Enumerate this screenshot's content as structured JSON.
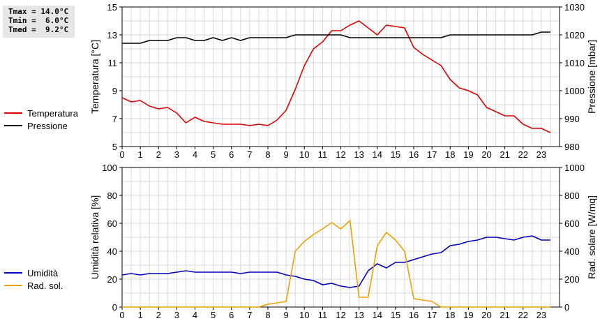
{
  "stats": {
    "tmax": "Tmax = 14.0°C",
    "tmin": "Tmin =  6.0°C",
    "tmed": "Tmed =  9.2°C"
  },
  "legend_top": [
    {
      "label": "Temperatura",
      "color": "#e00000"
    },
    {
      "label": "Pressione",
      "color": "#000000"
    }
  ],
  "legend_bottom": [
    {
      "label": "Umidità",
      "color": "#0000c0"
    },
    {
      "label": "Rad. sol.",
      "color": "#f0a000"
    }
  ],
  "chart_data": [
    {
      "type": "line",
      "xlabel": "",
      "ylabel": "Temperatura [°C]",
      "ylabel_right": "Pressione [mbar]",
      "xlim": [
        0,
        24
      ],
      "ylim": [
        5,
        15
      ],
      "ylim_right": [
        980,
        1030
      ],
      "xticks": [
        0,
        1,
        2,
        3,
        4,
        5,
        6,
        7,
        8,
        9,
        10,
        11,
        12,
        13,
        14,
        15,
        16,
        17,
        18,
        19,
        20,
        21,
        22,
        23
      ],
      "yticks": [
        5,
        7,
        9,
        11,
        13,
        15
      ],
      "yticks_right": [
        980,
        990,
        1000,
        1010,
        1020,
        1030
      ],
      "grid": true,
      "series": [
        {
          "name": "Temperatura",
          "color": "#e00000",
          "axis": "left",
          "x": [
            0,
            0.5,
            1,
            1.5,
            2,
            2.5,
            3,
            3.5,
            4,
            4.5,
            5,
            5.5,
            6,
            6.5,
            7,
            7.5,
            8,
            8.5,
            9,
            9.5,
            10,
            10.5,
            11,
            11.5,
            12,
            12.5,
            13,
            13.5,
            14,
            14.5,
            15,
            15.5,
            16,
            16.5,
            17,
            17.5,
            18,
            18.5,
            19,
            19.5,
            20,
            20.5,
            21,
            21.5,
            22,
            22.5,
            23,
            23.5
          ],
          "y": [
            8.5,
            8.2,
            8.3,
            7.9,
            7.7,
            7.8,
            7.4,
            6.7,
            7.1,
            6.8,
            6.7,
            6.6,
            6.6,
            6.6,
            6.5,
            6.6,
            6.5,
            6.9,
            7.6,
            9.1,
            10.8,
            12.0,
            12.5,
            13.3,
            13.3,
            13.7,
            14.0,
            13.5,
            13.0,
            13.7,
            13.6,
            13.5,
            12.1,
            11.6,
            11.2,
            10.8,
            9.8,
            9.2,
            9.0,
            8.7,
            7.8,
            7.5,
            7.2,
            7.2,
            6.6,
            6.3,
            6.3,
            6.0
          ]
        },
        {
          "name": "Pressione",
          "color": "#000000",
          "axis": "right",
          "x": [
            0,
            0.5,
            1,
            1.5,
            2,
            2.5,
            3,
            3.5,
            4,
            4.5,
            5,
            5.5,
            6,
            6.5,
            7,
            7.5,
            8,
            8.5,
            9,
            9.5,
            10,
            10.5,
            11,
            11.5,
            12,
            12.5,
            13,
            13.5,
            14,
            14.5,
            15,
            15.5,
            16,
            16.5,
            17,
            17.5,
            18,
            18.5,
            19,
            19.5,
            20,
            20.5,
            21,
            21.5,
            22,
            22.5,
            23,
            23.5
          ],
          "y": [
            1017,
            1017,
            1017,
            1018,
            1018,
            1018,
            1019,
            1019,
            1018,
            1018,
            1019,
            1018,
            1019,
            1018,
            1019,
            1019,
            1019,
            1019,
            1019,
            1020,
            1020,
            1020,
            1020,
            1020,
            1020,
            1019,
            1019,
            1019,
            1019,
            1019,
            1019,
            1019,
            1019,
            1019,
            1019,
            1019,
            1020,
            1020,
            1020,
            1020,
            1020,
            1020,
            1020,
            1020,
            1020,
            1020,
            1021,
            1021
          ]
        }
      ]
    },
    {
      "type": "line",
      "xlabel": "",
      "ylabel": "Umidità relativa [%]",
      "ylabel_right": "Rad. solare [W/mq]",
      "xlim": [
        0,
        24
      ],
      "ylim": [
        0,
        100
      ],
      "ylim_right": [
        0,
        1000
      ],
      "xticks": [
        0,
        1,
        2,
        3,
        4,
        5,
        6,
        7,
        8,
        9,
        10,
        11,
        12,
        13,
        14,
        15,
        16,
        17,
        18,
        19,
        20,
        21,
        22,
        23
      ],
      "yticks": [
        0,
        20,
        40,
        60,
        80,
        100
      ],
      "yticks_right": [
        0,
        200,
        400,
        600,
        800,
        1000
      ],
      "grid": true,
      "series": [
        {
          "name": "Umidità",
          "color": "#0000c0",
          "axis": "left",
          "x": [
            0,
            0.5,
            1,
            1.5,
            2,
            2.5,
            3,
            3.5,
            4,
            4.5,
            5,
            5.5,
            6,
            6.5,
            7,
            7.5,
            8,
            8.5,
            9,
            9.5,
            10,
            10.5,
            11,
            11.5,
            12,
            12.5,
            13,
            13.5,
            14,
            14.5,
            15,
            15.5,
            16,
            16.5,
            17,
            17.5,
            18,
            18.5,
            19,
            19.5,
            20,
            20.5,
            21,
            21.5,
            22,
            22.5,
            23,
            23.5
          ],
          "y": [
            23,
            24,
            23,
            24,
            24,
            24,
            25,
            26,
            25,
            25,
            25,
            25,
            25,
            24,
            25,
            25,
            25,
            25,
            23,
            22,
            20,
            19,
            16,
            17,
            15,
            14,
            15,
            26,
            31,
            28,
            32,
            32,
            34,
            36,
            38,
            39,
            44,
            45,
            47,
            48,
            50,
            50,
            49,
            48,
            50,
            51,
            48,
            48
          ]
        },
        {
          "name": "Rad. sol.",
          "color": "#f0a000",
          "axis": "right",
          "x": [
            0,
            0.5,
            1,
            1.5,
            2,
            2.5,
            3,
            3.5,
            4,
            4.5,
            5,
            5.5,
            6,
            6.5,
            7,
            7.5,
            8,
            8.5,
            9,
            9.5,
            10,
            10.5,
            11,
            11.5,
            12,
            12.5,
            13,
            13.5,
            14,
            14.5,
            15,
            15.5,
            16,
            16.5,
            17,
            17.5,
            18,
            18.5,
            19,
            19.5,
            20,
            20.5,
            21,
            21.5,
            22,
            22.5,
            23,
            23.5
          ],
          "y": [
            0,
            0,
            0,
            0,
            0,
            0,
            0,
            0,
            0,
            0,
            0,
            0,
            0,
            0,
            0,
            0,
            20,
            30,
            40,
            400,
            470,
            520,
            560,
            605,
            560,
            620,
            70,
            70,
            440,
            535,
            480,
            400,
            60,
            50,
            40,
            0,
            0,
            0,
            0,
            0,
            0,
            0,
            0,
            0,
            0,
            0,
            0,
            0
          ]
        }
      ]
    }
  ]
}
